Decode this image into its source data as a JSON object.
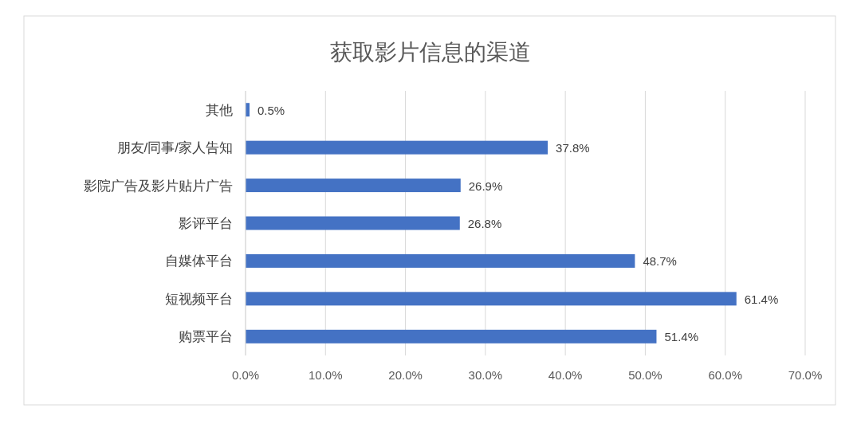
{
  "chart_data": {
    "type": "bar",
    "orientation": "horizontal",
    "title": "获取影片信息的渠道",
    "categories": [
      "其他",
      "朋友/同事/家人告知",
      "影院广告及影片贴片广告",
      "影评平台",
      "自媒体平台",
      "短视频平台",
      "购票平台"
    ],
    "values": [
      0.5,
      37.8,
      26.9,
      26.8,
      48.7,
      61.4,
      51.4
    ],
    "value_labels": [
      "0.5%",
      "37.8%",
      "26.9%",
      "26.8%",
      "48.7%",
      "61.4%",
      "51.4%"
    ],
    "color": "#4472c4",
    "xlim": [
      0,
      70
    ],
    "xticks": [
      {
        "value": 0,
        "label": "0.0%"
      },
      {
        "value": 10,
        "label": "10.0%"
      },
      {
        "value": 20,
        "label": "20.0%"
      },
      {
        "value": 30,
        "label": "30.0%"
      },
      {
        "value": 40,
        "label": "40.0%"
      },
      {
        "value": 50,
        "label": "50.0%"
      },
      {
        "value": 60,
        "label": "60.0%"
      },
      {
        "value": 70,
        "label": "70.0%"
      }
    ],
    "grid": "x"
  }
}
